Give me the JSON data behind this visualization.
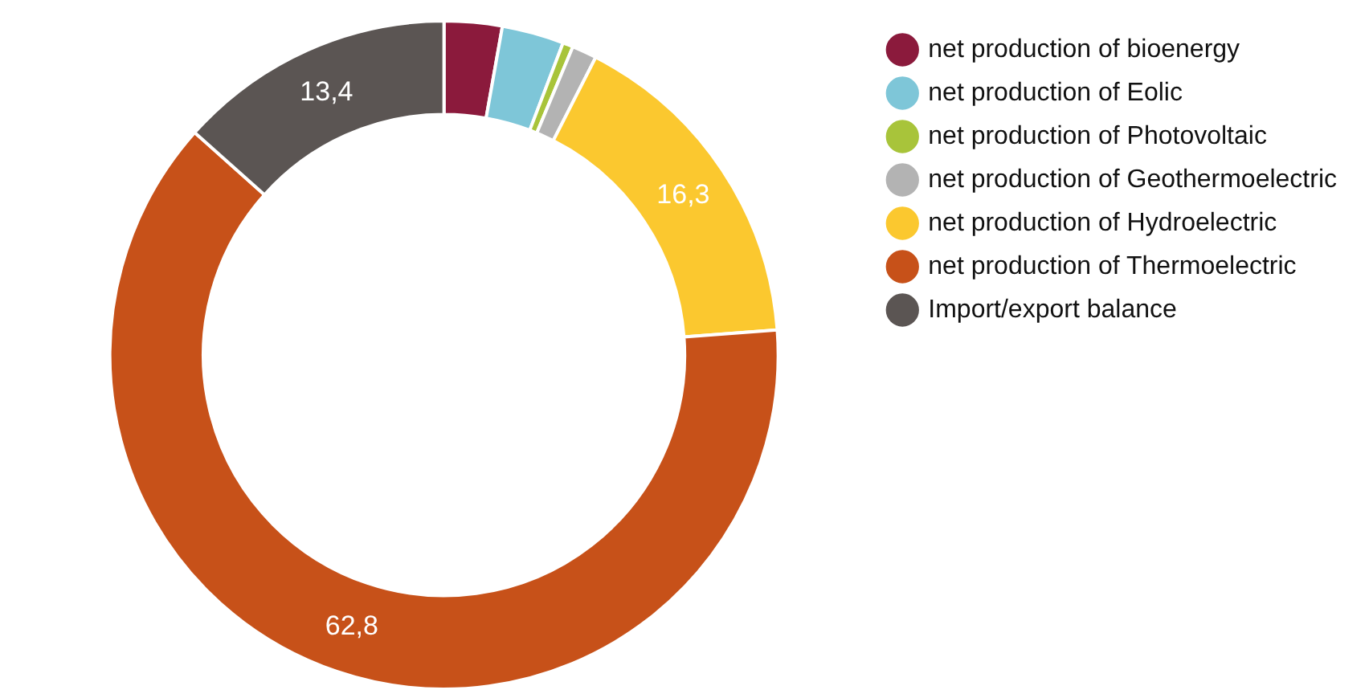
{
  "chart_data": {
    "type": "donut",
    "categories": [
      "net production of bioenergy",
      "net production of Eolic",
      "net production of Photovoltaic",
      "net production of Geothermoelectric",
      "net production of Hydroelectric",
      "net production of Thermoelectric",
      "Import/export balance"
    ],
    "values": [
      2.8,
      3.0,
      0.5,
      1.2,
      16.3,
      62.8,
      13.4
    ],
    "colors": [
      "#8b1a3c",
      "#7ec6d8",
      "#a8c43a",
      "#b3b3b3",
      "#fbc82f",
      "#c75119",
      "#5b5553"
    ],
    "value_labels": [
      null,
      null,
      null,
      null,
      "16,3",
      "62,8",
      "13,4"
    ],
    "legend": "top right"
  }
}
